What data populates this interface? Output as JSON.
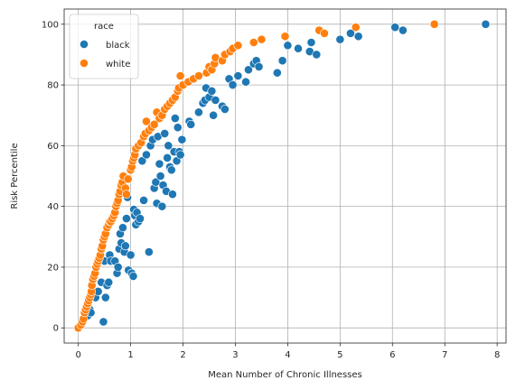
{
  "chart_data": {
    "type": "scatter",
    "xlabel": "Mean Number of Chronic Illnesses",
    "ylabel": "Risk Percentile",
    "xlim": [
      -0.27,
      8.17
    ],
    "ylim": [
      -5,
      105
    ],
    "xticks": [
      0,
      1,
      2,
      3,
      4,
      5,
      6,
      7,
      8
    ],
    "yticks": [
      0,
      20,
      40,
      60,
      80,
      100
    ],
    "grid": true,
    "legend": {
      "title": "race",
      "placement": "top-left"
    },
    "series": [
      {
        "name": "black",
        "color": "#1f77b4",
        "points": [
          [
            0.0,
            0
          ],
          [
            0.18,
            4
          ],
          [
            0.22,
            6
          ],
          [
            0.24,
            5
          ],
          [
            0.33,
            10
          ],
          [
            0.38,
            12
          ],
          [
            0.44,
            15
          ],
          [
            0.48,
            2
          ],
          [
            0.5,
            22
          ],
          [
            0.52,
            10
          ],
          [
            0.55,
            14
          ],
          [
            0.58,
            15
          ],
          [
            0.6,
            24
          ],
          [
            0.62,
            22
          ],
          [
            0.7,
            22
          ],
          [
            0.74,
            18
          ],
          [
            0.76,
            20
          ],
          [
            0.78,
            26
          ],
          [
            0.8,
            31
          ],
          [
            0.82,
            28
          ],
          [
            0.85,
            33
          ],
          [
            0.88,
            25
          ],
          [
            0.9,
            27
          ],
          [
            0.92,
            36
          ],
          [
            0.94,
            43
          ],
          [
            0.96,
            19
          ],
          [
            1.0,
            24
          ],
          [
            1.02,
            18
          ],
          [
            1.05,
            17
          ],
          [
            1.06,
            39
          ],
          [
            1.08,
            37
          ],
          [
            1.1,
            34
          ],
          [
            1.12,
            38
          ],
          [
            1.15,
            35
          ],
          [
            1.18,
            36
          ],
          [
            1.22,
            55
          ],
          [
            1.25,
            42
          ],
          [
            1.3,
            57
          ],
          [
            1.35,
            25
          ],
          [
            1.38,
            60
          ],
          [
            1.42,
            62
          ],
          [
            1.45,
            46
          ],
          [
            1.48,
            48
          ],
          [
            1.5,
            41
          ],
          [
            1.52,
            63
          ],
          [
            1.55,
            54
          ],
          [
            1.57,
            50
          ],
          [
            1.6,
            40
          ],
          [
            1.62,
            47
          ],
          [
            1.65,
            64
          ],
          [
            1.68,
            45
          ],
          [
            1.7,
            56
          ],
          [
            1.72,
            60
          ],
          [
            1.75,
            53
          ],
          [
            1.78,
            52
          ],
          [
            1.8,
            44
          ],
          [
            1.83,
            58
          ],
          [
            1.85,
            69
          ],
          [
            1.88,
            55
          ],
          [
            1.9,
            66
          ],
          [
            1.93,
            58
          ],
          [
            1.95,
            57
          ],
          [
            1.98,
            62
          ],
          [
            2.0,
            80
          ],
          [
            2.12,
            68
          ],
          [
            2.15,
            67
          ],
          [
            2.3,
            71
          ],
          [
            2.38,
            74
          ],
          [
            2.42,
            75
          ],
          [
            2.44,
            79
          ],
          [
            2.5,
            76
          ],
          [
            2.55,
            78
          ],
          [
            2.58,
            70
          ],
          [
            2.62,
            75
          ],
          [
            2.75,
            73
          ],
          [
            2.8,
            72
          ],
          [
            2.88,
            82
          ],
          [
            2.95,
            80
          ],
          [
            3.05,
            83
          ],
          [
            3.2,
            81
          ],
          [
            3.25,
            85
          ],
          [
            3.35,
            87
          ],
          [
            3.4,
            88
          ],
          [
            3.45,
            86
          ],
          [
            3.8,
            84
          ],
          [
            3.9,
            88
          ],
          [
            4.0,
            93
          ],
          [
            4.2,
            92
          ],
          [
            4.42,
            91
          ],
          [
            4.45,
            94
          ],
          [
            4.55,
            90
          ],
          [
            5.0,
            95
          ],
          [
            5.2,
            97
          ],
          [
            5.35,
            96
          ],
          [
            6.05,
            99
          ],
          [
            6.2,
            98
          ],
          [
            7.78,
            100
          ]
        ]
      },
      {
        "name": "white",
        "color": "#ff7f0e",
        "points": [
          [
            0.0,
            0
          ],
          [
            0.05,
            1
          ],
          [
            0.08,
            2
          ],
          [
            0.1,
            3
          ],
          [
            0.12,
            5
          ],
          [
            0.14,
            6
          ],
          [
            0.16,
            7
          ],
          [
            0.18,
            8
          ],
          [
            0.2,
            9
          ],
          [
            0.22,
            10
          ],
          [
            0.24,
            11
          ],
          [
            0.25,
            12
          ],
          [
            0.26,
            14
          ],
          [
            0.28,
            16
          ],
          [
            0.3,
            17
          ],
          [
            0.32,
            18
          ],
          [
            0.34,
            20
          ],
          [
            0.36,
            21
          ],
          [
            0.38,
            22
          ],
          [
            0.4,
            23
          ],
          [
            0.42,
            24
          ],
          [
            0.44,
            26
          ],
          [
            0.46,
            27
          ],
          [
            0.48,
            29
          ],
          [
            0.5,
            30
          ],
          [
            0.52,
            31
          ],
          [
            0.55,
            33
          ],
          [
            0.58,
            34
          ],
          [
            0.6,
            35
          ],
          [
            0.62,
            35
          ],
          [
            0.65,
            36
          ],
          [
            0.68,
            37
          ],
          [
            0.7,
            38
          ],
          [
            0.72,
            40
          ],
          [
            0.74,
            41
          ],
          [
            0.76,
            42
          ],
          [
            0.78,
            44
          ],
          [
            0.8,
            45
          ],
          [
            0.82,
            47
          ],
          [
            0.84,
            48
          ],
          [
            0.86,
            50
          ],
          [
            0.9,
            46
          ],
          [
            0.92,
            44
          ],
          [
            0.95,
            49
          ],
          [
            1.0,
            52
          ],
          [
            1.02,
            53
          ],
          [
            1.04,
            55
          ],
          [
            1.06,
            56
          ],
          [
            1.08,
            57
          ],
          [
            1.1,
            59
          ],
          [
            1.15,
            60
          ],
          [
            1.2,
            61
          ],
          [
            1.25,
            63
          ],
          [
            1.28,
            64
          ],
          [
            1.3,
            68
          ],
          [
            1.35,
            65
          ],
          [
            1.4,
            66
          ],
          [
            1.45,
            67
          ],
          [
            1.5,
            71
          ],
          [
            1.55,
            69
          ],
          [
            1.6,
            70
          ],
          [
            1.65,
            72
          ],
          [
            1.7,
            73
          ],
          [
            1.75,
            74
          ],
          [
            1.8,
            75
          ],
          [
            1.85,
            76
          ],
          [
            1.9,
            78
          ],
          [
            1.92,
            79
          ],
          [
            1.95,
            83
          ],
          [
            2.0,
            80
          ],
          [
            2.1,
            81
          ],
          [
            2.2,
            82
          ],
          [
            2.3,
            83
          ],
          [
            2.45,
            84
          ],
          [
            2.5,
            86
          ],
          [
            2.55,
            85
          ],
          [
            2.6,
            87
          ],
          [
            2.62,
            89
          ],
          [
            2.75,
            88
          ],
          [
            2.8,
            90
          ],
          [
            2.9,
            91
          ],
          [
            2.95,
            92
          ],
          [
            3.05,
            93
          ],
          [
            3.35,
            94
          ],
          [
            3.5,
            95
          ],
          [
            3.95,
            96
          ],
          [
            4.6,
            98
          ],
          [
            4.7,
            97
          ],
          [
            5.3,
            99
          ],
          [
            6.8,
            100
          ]
        ]
      }
    ]
  }
}
